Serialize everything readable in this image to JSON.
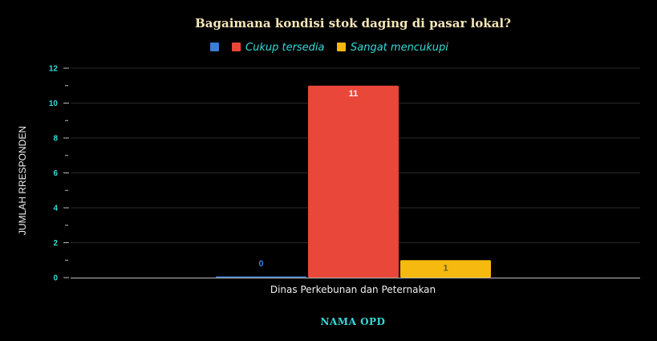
{
  "chart_data": {
    "type": "bar",
    "title": "Bagaimana kondisi stok daging di pasar lokal?",
    "categories": [
      "Dinas Perkebunan dan Peternakan"
    ],
    "series": [
      {
        "name": "",
        "values": [
          0
        ],
        "color": "#3b7dd8",
        "data_label_color": "#3b7dd8"
      },
      {
        "name": "Cukup tersedia",
        "values": [
          11
        ],
        "color": "#e8473a",
        "data_label_color": "#f0f0f0"
      },
      {
        "name": "Sangat mencukupi",
        "values": [
          1
        ],
        "color": "#f5b90f",
        "data_label_color": "#6b5a1a"
      }
    ],
    "data_labels": [
      "0",
      "11",
      "1"
    ],
    "xlabel": "NAMA OPD",
    "ylabel": "JUMLAH RRESPONDEN",
    "ylim": [
      0,
      12
    ],
    "yticks": [
      0,
      2,
      4,
      6,
      8,
      10,
      12
    ],
    "ytick_labels": [
      "0",
      "2",
      "4",
      "6",
      "8",
      "10",
      "12"
    ],
    "grid": true,
    "legend_position": "top",
    "colors": {
      "background": "#000000",
      "grid": "#2a2a2a",
      "axis": "#bbbbbb",
      "tick_label": "#36d9d9",
      "legend_text": "#36d9d9"
    }
  }
}
